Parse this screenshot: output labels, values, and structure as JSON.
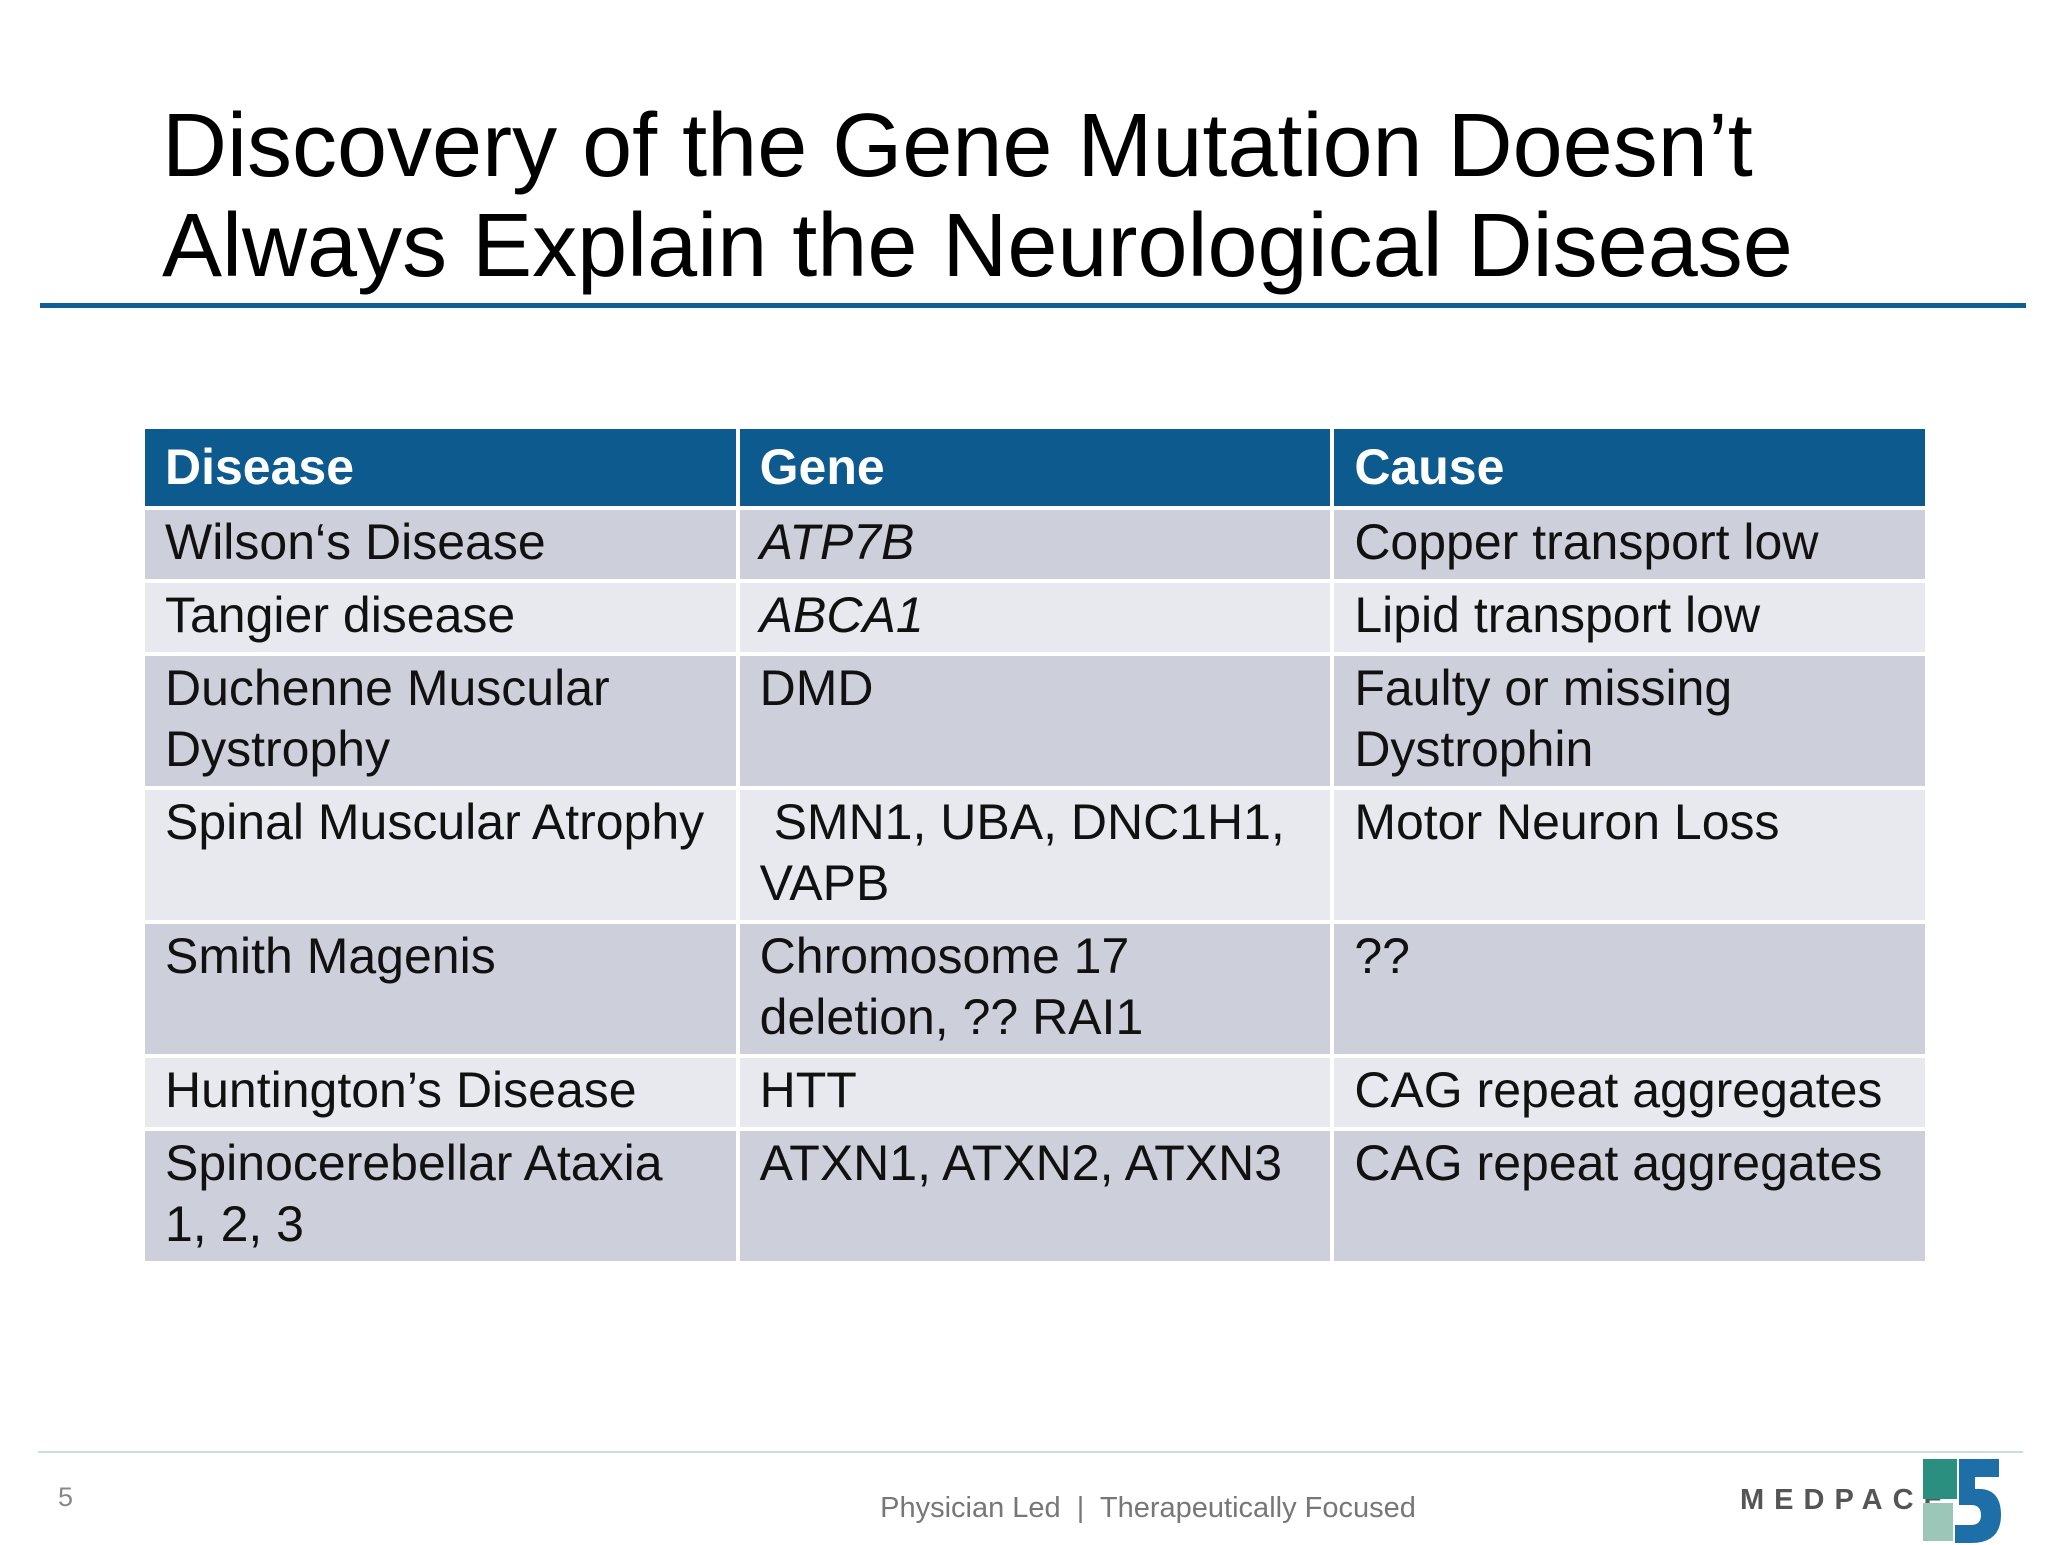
{
  "header": {
    "title": [
      "Discovery of the Gene Mutation Doesn’t",
      "Always Explain the Neurological Disease"
    ]
  },
  "table": {
    "header": [
      "Disease",
      "Gene",
      "Cause"
    ],
    "rows": [
      [
        "Wilson‘s Disease",
        "ATP7B",
        "Copper transport low"
      ],
      [
        "Tangier disease",
        "ABCA1",
        "Lipid transport low"
      ],
      [
        "Duchenne Muscular Dystrophy",
        "DMD",
        "Faulty or missing Dystrophin"
      ],
      [
        "Spinal Muscular Atrophy",
        " SMN1, UBA, DNC1H1, VAPB",
        "Motor Neuron Loss"
      ],
      [
        "Smith Magenis",
        "Chromosome 17 deletion, ?? RAI1",
        "??"
      ],
      [
        "Huntington’s Disease",
        "HTT",
        "CAG repeat aggregates"
      ],
      [
        "Spinocerebellar Ataxia 1, 2, 3",
        "ATXN1, ATXN2, ATXN3",
        "CAG repeat aggregates"
      ]
    ]
  },
  "footer": {
    "page_number": "5",
    "tagline": "Physician Led  |  Therapeutically Focused",
    "logo": "MEDPACE"
  }
}
